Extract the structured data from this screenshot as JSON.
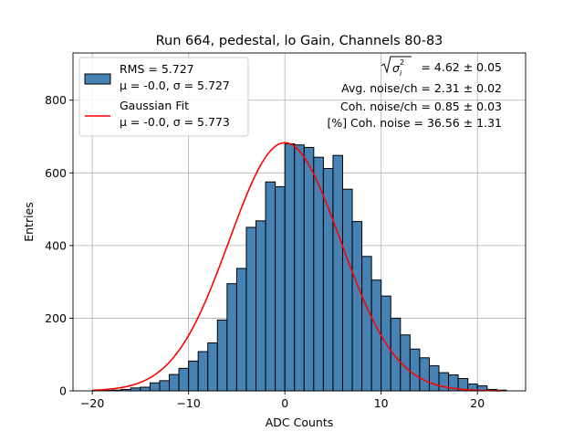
{
  "chart_data": {
    "type": "bar",
    "title": "Run 664, pedestal, lo Gain, Channels 80-83",
    "xlabel": "ADC Counts",
    "ylabel": "Entries",
    "xlim": [
      -22,
      25
    ],
    "ylim": [
      0,
      930
    ],
    "xticks": [
      -20,
      -10,
      0,
      10,
      20
    ],
    "yticks": [
      0,
      200,
      400,
      600,
      800
    ],
    "xtick_labels": [
      "−20",
      "−10",
      "0",
      "10",
      "20"
    ],
    "ytick_labels": [
      "0",
      "200",
      "400",
      "600",
      "800"
    ],
    "grid": true,
    "legend_position": "top-left",
    "bin_start": -19,
    "bin_width": 1,
    "bin_counts": [
      1,
      2,
      4,
      8,
      10,
      22,
      28,
      45,
      62,
      82,
      108,
      132,
      195,
      295,
      337,
      450,
      468,
      575,
      562,
      680,
      677,
      670,
      643,
      612,
      648,
      555,
      466,
      370,
      305,
      261,
      200,
      154,
      115,
      91,
      69,
      50,
      44,
      34,
      19,
      14,
      4,
      2
    ],
    "histogram": {
      "color": "#4682b4",
      "edge_color": "#000000",
      "legend": {
        "line1": "RMS = 5.727",
        "line2": "μ = -0.0, σ = 5.727"
      }
    },
    "gaussian_fit": {
      "mu": 0.0,
      "sigma": 5.773,
      "amplitude": 683,
      "x_range": [
        -20,
        22.5
      ],
      "color": "#ff0000",
      "legend": {
        "line1": "Gaussian Fit",
        "line2": "μ = -0.0, σ = 5.773"
      }
    },
    "annotations": {
      "sigma_total": "= 4.62 ± 0.05",
      "avg_noise": "Avg. noise/ch = 2.31 ± 0.02",
      "coh_noise": "Coh. noise/ch = 0.85 ± 0.03",
      "pct_coh_noise": "[%] Coh. noise = 36.56 ± 1.31"
    }
  }
}
